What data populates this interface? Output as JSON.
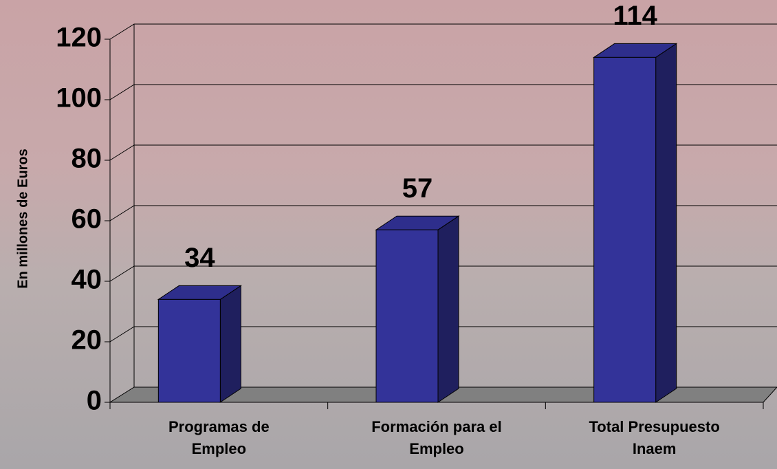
{
  "chart_data": {
    "type": "bar3d",
    "y_label": "En millones de Euros",
    "categories": [
      "Programas de\nEmpleo",
      "Formación para el\nEmpleo",
      "Total Presupuesto\nInaem"
    ],
    "values": [
      34,
      57,
      114
    ],
    "color": "#333399",
    "ylim": [
      0,
      120
    ],
    "yticks": [
      0,
      20,
      40,
      60,
      80,
      100,
      120
    ],
    "grid": true
  }
}
